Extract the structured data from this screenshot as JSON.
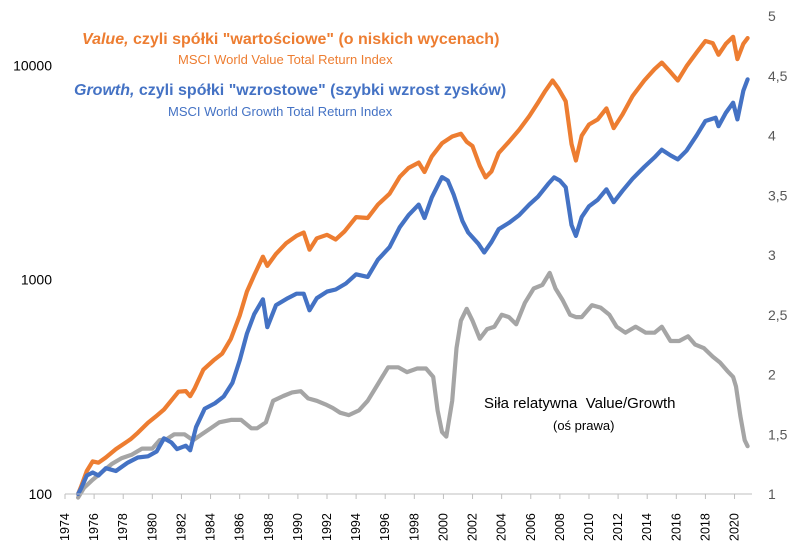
{
  "chart_data": {
    "type": "line",
    "x_ticks": [
      "1974",
      "1976",
      "1978",
      "1980",
      "1982",
      "1984",
      "1986",
      "1988",
      "1990",
      "1992",
      "1994",
      "1996",
      "1998",
      "2000",
      "2002",
      "2004",
      "2006",
      "2008",
      "2010",
      "2012",
      "2014",
      "2016",
      "2018",
      "2020"
    ],
    "xlim": [
      1974,
      2021.2
    ],
    "y_left_ticks": [
      "100",
      "1000",
      "10000"
    ],
    "y_left_scale": "log",
    "ylim_left": [
      100,
      17000
    ],
    "y_right_ticks": [
      "1",
      "1,5",
      "2",
      "2,5",
      "3",
      "3,5",
      "4",
      "4,5",
      "5"
    ],
    "ylim_right": [
      1,
      5
    ],
    "grid": false,
    "annotations": {
      "value_title_italic": "Value,",
      "value_title_rest": " czyli spółki \"wartościowe\" (o niskich wycenach)",
      "value_subtitle": "MSCI World Value Total Return Index",
      "growth_title_italic": "Growth,",
      "growth_title_rest": " czyli spółki \"wzrostowe\" (szybki wzrost zysków)",
      "growth_subtitle": "MSCI World Growth Total Return Index",
      "relative_title": "Siła relatywna  Value/Growth",
      "relative_subtitle": "(oś prawa)"
    },
    "series": [
      {
        "axis": "left",
        "color": "#ED7D31",
        "points": [
          [
            1974.9,
            100
          ],
          [
            1975.1,
            108
          ],
          [
            1975.5,
            128
          ],
          [
            1975.9,
            142
          ],
          [
            1976.3,
            140
          ],
          [
            1976.8,
            148
          ],
          [
            1977.5,
            162
          ],
          [
            1978.5,
            180
          ],
          [
            1979.0,
            193
          ],
          [
            1979.7,
            215
          ],
          [
            1980.3,
            232
          ],
          [
            1980.8,
            248
          ],
          [
            1981.4,
            278
          ],
          [
            1981.8,
            300
          ],
          [
            1982.3,
            302
          ],
          [
            1982.6,
            286
          ],
          [
            1982.9,
            310
          ],
          [
            1983.5,
            380
          ],
          [
            1984.2,
            420
          ],
          [
            1984.8,
            452
          ],
          [
            1985.4,
            530
          ],
          [
            1986.0,
            680
          ],
          [
            1986.5,
            880
          ],
          [
            1987.0,
            1050
          ],
          [
            1987.6,
            1280
          ],
          [
            1987.9,
            1160
          ],
          [
            1988.5,
            1320
          ],
          [
            1989.2,
            1480
          ],
          [
            1989.9,
            1600
          ],
          [
            1990.4,
            1660
          ],
          [
            1990.8,
            1380
          ],
          [
            1991.3,
            1560
          ],
          [
            1992.0,
            1620
          ],
          [
            1992.6,
            1540
          ],
          [
            1993.2,
            1680
          ],
          [
            1994.0,
            1960
          ],
          [
            1994.8,
            1940
          ],
          [
            1995.5,
            2240
          ],
          [
            1996.3,
            2520
          ],
          [
            1997.0,
            3020
          ],
          [
            1997.6,
            3320
          ],
          [
            1998.3,
            3520
          ],
          [
            1998.7,
            3180
          ],
          [
            1999.2,
            3760
          ],
          [
            1999.9,
            4330
          ],
          [
            2000.6,
            4660
          ],
          [
            2001.2,
            4800
          ],
          [
            2001.6,
            4400
          ],
          [
            2002.0,
            4200
          ],
          [
            2002.5,
            3400
          ],
          [
            2002.9,
            3000
          ],
          [
            2003.3,
            3200
          ],
          [
            2003.8,
            3900
          ],
          [
            2004.5,
            4400
          ],
          [
            2005.2,
            5000
          ],
          [
            2005.9,
            5800
          ],
          [
            2006.5,
            6700
          ],
          [
            2007.0,
            7600
          ],
          [
            2007.5,
            8500
          ],
          [
            2007.9,
            7800
          ],
          [
            2008.4,
            6800
          ],
          [
            2008.8,
            4300
          ],
          [
            2009.1,
            3600
          ],
          [
            2009.5,
            4700
          ],
          [
            2010.0,
            5300
          ],
          [
            2010.6,
            5600
          ],
          [
            2011.2,
            6300
          ],
          [
            2011.7,
            5100
          ],
          [
            2012.3,
            5900
          ],
          [
            2013.0,
            7200
          ],
          [
            2013.8,
            8500
          ],
          [
            2014.5,
            9600
          ],
          [
            2015.0,
            10300
          ],
          [
            2015.6,
            9300
          ],
          [
            2016.1,
            8500
          ],
          [
            2016.7,
            9900
          ],
          [
            2017.4,
            11500
          ],
          [
            2018.0,
            13000
          ],
          [
            2018.5,
            12700
          ],
          [
            2018.9,
            11200
          ],
          [
            2019.4,
            12600
          ],
          [
            2019.9,
            13600
          ],
          [
            2020.2,
            10700
          ],
          [
            2020.6,
            12600
          ],
          [
            2020.9,
            13400
          ]
        ]
      },
      {
        "axis": "left",
        "color": "#4472C4",
        "points": [
          [
            1974.9,
            100
          ],
          [
            1975.1,
            106
          ],
          [
            1975.5,
            122
          ],
          [
            1975.9,
            126
          ],
          [
            1976.3,
            122
          ],
          [
            1976.8,
            132
          ],
          [
            1977.5,
            128
          ],
          [
            1978.3,
            140
          ],
          [
            1979.0,
            148
          ],
          [
            1979.7,
            150
          ],
          [
            1980.3,
            158
          ],
          [
            1980.8,
            182
          ],
          [
            1981.3,
            174
          ],
          [
            1981.7,
            162
          ],
          [
            1982.3,
            168
          ],
          [
            1982.6,
            160
          ],
          [
            1983.0,
            205
          ],
          [
            1983.6,
            250
          ],
          [
            1984.3,
            265
          ],
          [
            1984.9,
            285
          ],
          [
            1985.5,
            330
          ],
          [
            1986.0,
            420
          ],
          [
            1986.5,
            560
          ],
          [
            1987.0,
            690
          ],
          [
            1987.6,
            810
          ],
          [
            1987.9,
            600
          ],
          [
            1988.5,
            760
          ],
          [
            1989.3,
            820
          ],
          [
            1989.9,
            860
          ],
          [
            1990.4,
            860
          ],
          [
            1990.8,
            720
          ],
          [
            1991.3,
            820
          ],
          [
            1992.0,
            880
          ],
          [
            1992.6,
            900
          ],
          [
            1993.3,
            960
          ],
          [
            1994.0,
            1060
          ],
          [
            1994.8,
            1030
          ],
          [
            1995.5,
            1240
          ],
          [
            1996.3,
            1420
          ],
          [
            1997.0,
            1760
          ],
          [
            1997.6,
            2000
          ],
          [
            1998.3,
            2240
          ],
          [
            1998.7,
            1940
          ],
          [
            1999.2,
            2420
          ],
          [
            1999.9,
            3010
          ],
          [
            2000.3,
            2900
          ],
          [
            2000.7,
            2500
          ],
          [
            2001.3,
            1880
          ],
          [
            2001.7,
            1660
          ],
          [
            2002.4,
            1470
          ],
          [
            2002.8,
            1340
          ],
          [
            2003.3,
            1500
          ],
          [
            2003.8,
            1720
          ],
          [
            2004.5,
            1840
          ],
          [
            2005.2,
            2000
          ],
          [
            2005.9,
            2240
          ],
          [
            2006.5,
            2440
          ],
          [
            2007.2,
            2800
          ],
          [
            2007.6,
            3000
          ],
          [
            2008.0,
            2900
          ],
          [
            2008.4,
            2700
          ],
          [
            2008.8,
            1800
          ],
          [
            2009.1,
            1600
          ],
          [
            2009.5,
            1960
          ],
          [
            2010.0,
            2200
          ],
          [
            2010.6,
            2360
          ],
          [
            2011.2,
            2640
          ],
          [
            2011.7,
            2300
          ],
          [
            2012.3,
            2600
          ],
          [
            2013.0,
            2960
          ],
          [
            2013.8,
            3360
          ],
          [
            2014.5,
            3720
          ],
          [
            2015.0,
            4040
          ],
          [
            2015.6,
            3800
          ],
          [
            2016.1,
            3640
          ],
          [
            2016.7,
            4000
          ],
          [
            2017.4,
            4720
          ],
          [
            2018.0,
            5500
          ],
          [
            2018.7,
            5700
          ],
          [
            2018.9,
            5200
          ],
          [
            2019.4,
            6000
          ],
          [
            2019.9,
            6700
          ],
          [
            2020.2,
            5600
          ],
          [
            2020.6,
            7600
          ],
          [
            2020.9,
            8600
          ]
        ]
      },
      {
        "axis": "right",
        "color": "#A5A5A5",
        "points": [
          [
            1974.9,
            0.97
          ],
          [
            1975.3,
            1.05
          ],
          [
            1975.9,
            1.12
          ],
          [
            1976.5,
            1.18
          ],
          [
            1977.2,
            1.25
          ],
          [
            1977.9,
            1.3
          ],
          [
            1978.6,
            1.33
          ],
          [
            1979.3,
            1.38
          ],
          [
            1980.0,
            1.38
          ],
          [
            1980.5,
            1.45
          ],
          [
            1981.0,
            1.46
          ],
          [
            1981.5,
            1.5
          ],
          [
            1982.2,
            1.5
          ],
          [
            1982.8,
            1.45
          ],
          [
            1983.4,
            1.5
          ],
          [
            1984.0,
            1.55
          ],
          [
            1984.6,
            1.6
          ],
          [
            1985.4,
            1.62
          ],
          [
            1986.1,
            1.62
          ],
          [
            1986.8,
            1.55
          ],
          [
            1987.2,
            1.55
          ],
          [
            1987.8,
            1.6
          ],
          [
            1988.3,
            1.78
          ],
          [
            1989.0,
            1.82
          ],
          [
            1989.6,
            1.85
          ],
          [
            1990.2,
            1.86
          ],
          [
            1990.7,
            1.8
          ],
          [
            1991.3,
            1.78
          ],
          [
            1991.9,
            1.75
          ],
          [
            1992.4,
            1.72
          ],
          [
            1992.9,
            1.68
          ],
          [
            1993.5,
            1.66
          ],
          [
            1994.2,
            1.7
          ],
          [
            1994.8,
            1.78
          ],
          [
            1995.5,
            1.92
          ],
          [
            1996.2,
            2.06
          ],
          [
            1996.9,
            2.06
          ],
          [
            1997.5,
            2.02
          ],
          [
            1998.2,
            2.05
          ],
          [
            1998.8,
            2.05
          ],
          [
            1999.3,
            1.98
          ],
          [
            1999.6,
            1.7
          ],
          [
            1999.9,
            1.52
          ],
          [
            2000.2,
            1.48
          ],
          [
            2000.6,
            1.78
          ],
          [
            2000.9,
            2.22
          ],
          [
            2001.2,
            2.45
          ],
          [
            2001.6,
            2.55
          ],
          [
            2002.0,
            2.45
          ],
          [
            2002.5,
            2.3
          ],
          [
            2003.0,
            2.38
          ],
          [
            2003.5,
            2.4
          ],
          [
            2004.0,
            2.5
          ],
          [
            2004.5,
            2.48
          ],
          [
            2005.0,
            2.42
          ],
          [
            2005.6,
            2.6
          ],
          [
            2006.2,
            2.72
          ],
          [
            2006.8,
            2.75
          ],
          [
            2007.3,
            2.85
          ],
          [
            2007.7,
            2.72
          ],
          [
            2008.2,
            2.62
          ],
          [
            2008.7,
            2.5
          ],
          [
            2009.1,
            2.48
          ],
          [
            2009.5,
            2.48
          ],
          [
            2010.2,
            2.58
          ],
          [
            2010.8,
            2.56
          ],
          [
            2011.4,
            2.5
          ],
          [
            2011.9,
            2.4
          ],
          [
            2012.5,
            2.35
          ],
          [
            2013.2,
            2.4
          ],
          [
            2013.9,
            2.35
          ],
          [
            2014.5,
            2.35
          ],
          [
            2015.0,
            2.4
          ],
          [
            2015.6,
            2.28
          ],
          [
            2016.2,
            2.28
          ],
          [
            2016.8,
            2.32
          ],
          [
            2017.3,
            2.25
          ],
          [
            2017.9,
            2.22
          ],
          [
            2018.5,
            2.15
          ],
          [
            2019.0,
            2.1
          ],
          [
            2019.5,
            2.03
          ],
          [
            2019.9,
            1.98
          ],
          [
            2020.1,
            1.9
          ],
          [
            2020.4,
            1.65
          ],
          [
            2020.7,
            1.45
          ],
          [
            2020.9,
            1.4
          ]
        ]
      }
    ]
  }
}
